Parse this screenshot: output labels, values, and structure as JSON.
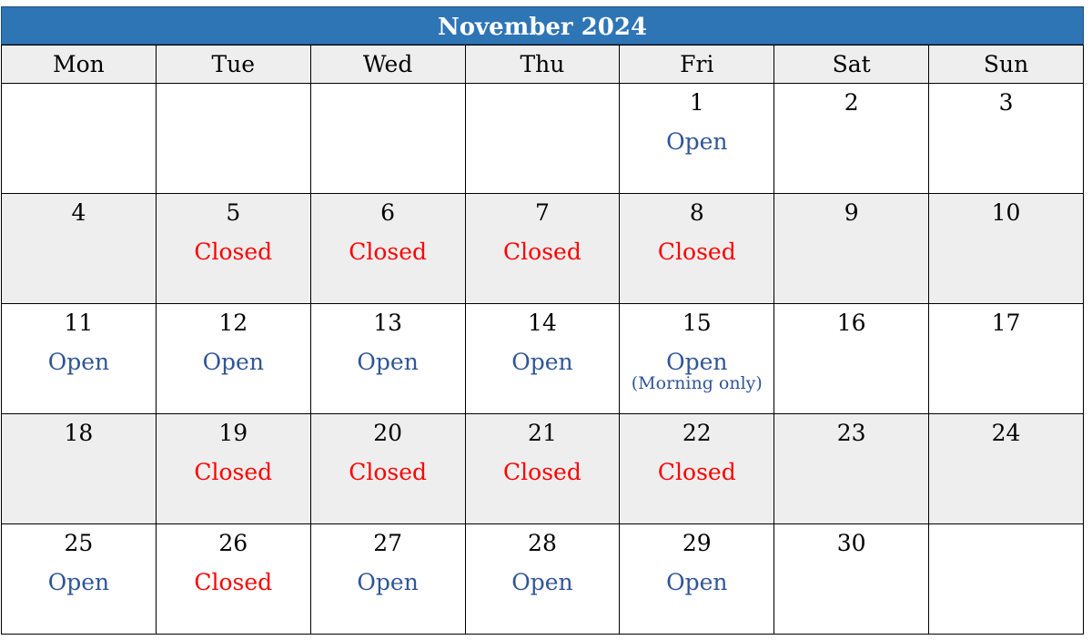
{
  "title": "November 2024",
  "colors": {
    "open": "#2f5597",
    "closed": "#ff0000",
    "header_bg": "#2e75b6",
    "shade": "#eeeeee"
  },
  "weekdays": [
    "Mon",
    "Tue",
    "Wed",
    "Thu",
    "Fri",
    "Sat",
    "Sun"
  ],
  "weeks": [
    [
      {
        "day": "",
        "status": "",
        "type": ""
      },
      {
        "day": "",
        "status": "",
        "type": ""
      },
      {
        "day": "",
        "status": "",
        "type": ""
      },
      {
        "day": "",
        "status": "",
        "type": ""
      },
      {
        "day": "1",
        "status": "Open",
        "type": "open"
      },
      {
        "day": "2",
        "status": "",
        "type": ""
      },
      {
        "day": "3",
        "status": "",
        "type": ""
      }
    ],
    [
      {
        "day": "4",
        "status": "",
        "type": ""
      },
      {
        "day": "5",
        "status": "Closed",
        "type": "closed"
      },
      {
        "day": "6",
        "status": "Closed",
        "type": "closed"
      },
      {
        "day": "7",
        "status": "Closed",
        "type": "closed"
      },
      {
        "day": "8",
        "status": "Closed",
        "type": "closed"
      },
      {
        "day": "9",
        "status": "",
        "type": ""
      },
      {
        "day": "10",
        "status": "",
        "type": ""
      }
    ],
    [
      {
        "day": "11",
        "status": "Open",
        "type": "open"
      },
      {
        "day": "12",
        "status": "Open",
        "type": "open"
      },
      {
        "day": "13",
        "status": "Open",
        "type": "open"
      },
      {
        "day": "14",
        "status": "Open",
        "type": "open"
      },
      {
        "day": "15",
        "status": "Open",
        "type": "open",
        "note": "(Morning only)"
      },
      {
        "day": "16",
        "status": "",
        "type": ""
      },
      {
        "day": "17",
        "status": "",
        "type": ""
      }
    ],
    [
      {
        "day": "18",
        "status": "",
        "type": ""
      },
      {
        "day": "19",
        "status": "Closed",
        "type": "closed"
      },
      {
        "day": "20",
        "status": "Closed",
        "type": "closed"
      },
      {
        "day": "21",
        "status": "Closed",
        "type": "closed"
      },
      {
        "day": "22",
        "status": "Closed",
        "type": "closed"
      },
      {
        "day": "23",
        "status": "",
        "type": ""
      },
      {
        "day": "24",
        "status": "",
        "type": ""
      }
    ],
    [
      {
        "day": "25",
        "status": "Open",
        "type": "open"
      },
      {
        "day": "26",
        "status": "Closed",
        "type": "closed"
      },
      {
        "day": "27",
        "status": "Open",
        "type": "open"
      },
      {
        "day": "28",
        "status": "Open",
        "type": "open"
      },
      {
        "day": "29",
        "status": "Open",
        "type": "open"
      },
      {
        "day": "30",
        "status": "",
        "type": ""
      },
      {
        "day": "",
        "status": "",
        "type": ""
      }
    ]
  ]
}
